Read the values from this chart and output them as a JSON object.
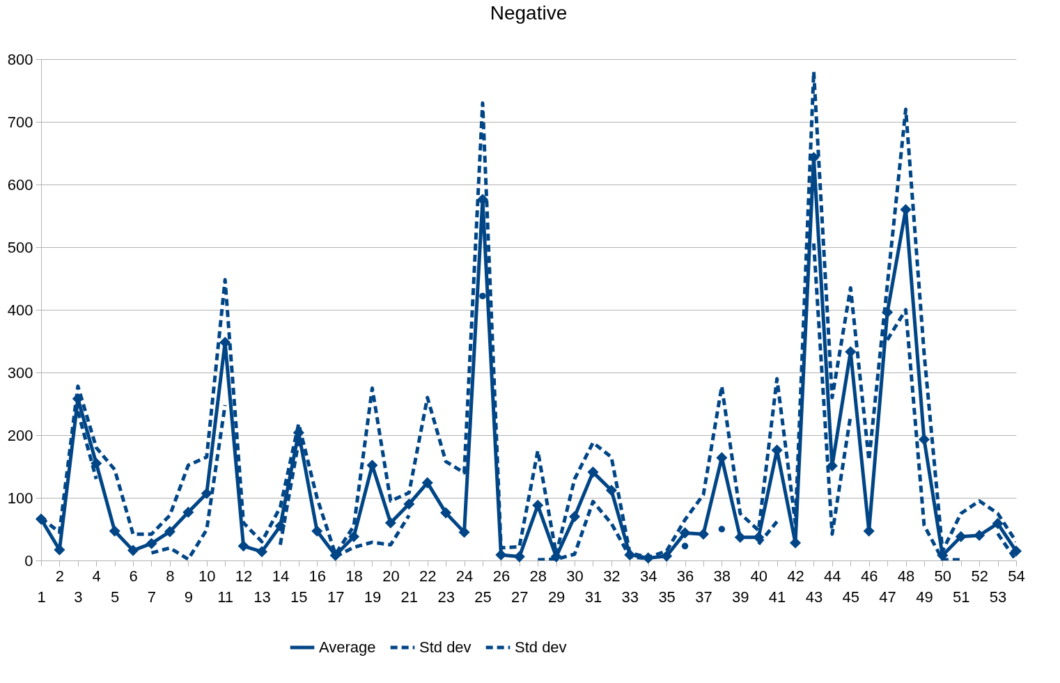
{
  "chart_data": {
    "type": "line",
    "title": "Negative",
    "categories": [
      "1",
      "2",
      "3",
      "4",
      "5",
      "6",
      "7",
      "8",
      "9",
      "10",
      "11",
      "12",
      "13",
      "14",
      "15",
      "16",
      "17",
      "18",
      "19",
      "20",
      "21",
      "22",
      "23",
      "24",
      "25",
      "26",
      "27",
      "28",
      "29",
      "30",
      "31",
      "32",
      "33",
      "34",
      "35",
      "36",
      "37",
      "38",
      "39",
      "40",
      "41",
      "42",
      "43",
      "44",
      "45",
      "46",
      "47",
      "48",
      "49",
      "50",
      "51",
      "52",
      "53",
      "54"
    ],
    "series": [
      {
        "name": "Average",
        "color": "#004586",
        "marker": "diamond",
        "line_style": "solid",
        "values": [
          66,
          17,
          258,
          155,
          47,
          16,
          27,
          46,
          77,
          107,
          348,
          23,
          14,
          55,
          204,
          47,
          8,
          38,
          152,
          60,
          90,
          124,
          76,
          45,
          576,
          9,
          6,
          88,
          6,
          70,
          141,
          112,
          9,
          4,
          7,
          44,
          42,
          164,
          37,
          37,
          176,
          28,
          643,
          151,
          333,
          47,
          396,
          560,
          193,
          8,
          38,
          40,
          59,
          15
        ]
      },
      {
        "name": "Std dev",
        "color": "#004586",
        "marker": "none",
        "line_style": "dashed",
        "values": [
          68,
          45,
          278,
          180,
          145,
          42,
          42,
          72,
          152,
          165,
          448,
          60,
          30,
          85,
          218,
          100,
          10,
          55,
          275,
          95,
          108,
          260,
          158,
          140,
          730,
          20,
          22,
          175,
          10,
          130,
          188,
          165,
          12,
          5,
          15,
          65,
          105,
          278,
          75,
          48,
          290,
          60,
          780,
          260,
          435,
          160,
          440,
          720,
          330,
          15,
          75,
          95,
          75,
          30
        ]
      },
      {
        "name": "Std dev",
        "color": "#004586",
        "marker": "none",
        "line_style": "dashed",
        "values": [
          null,
          null,
          238,
          130,
          null,
          null,
          12,
          20,
          2,
          49,
          248,
          null,
          null,
          25,
          190,
          null,
          6,
          21,
          29,
          25,
          72,
          null,
          null,
          null,
          422,
          null,
          null,
          1,
          2,
          10,
          94,
          59,
          6,
          3,
          null,
          23,
          null,
          50,
          null,
          26,
          62,
          null,
          506,
          42,
          231,
          null,
          352,
          400,
          56,
          1,
          1,
          null,
          43,
          0
        ]
      }
    ],
    "ylim": [
      0,
      800
    ],
    "yticks": [
      0,
      100,
      200,
      300,
      400,
      500,
      600,
      700,
      800
    ],
    "grid": "y",
    "legend": "bottom"
  }
}
